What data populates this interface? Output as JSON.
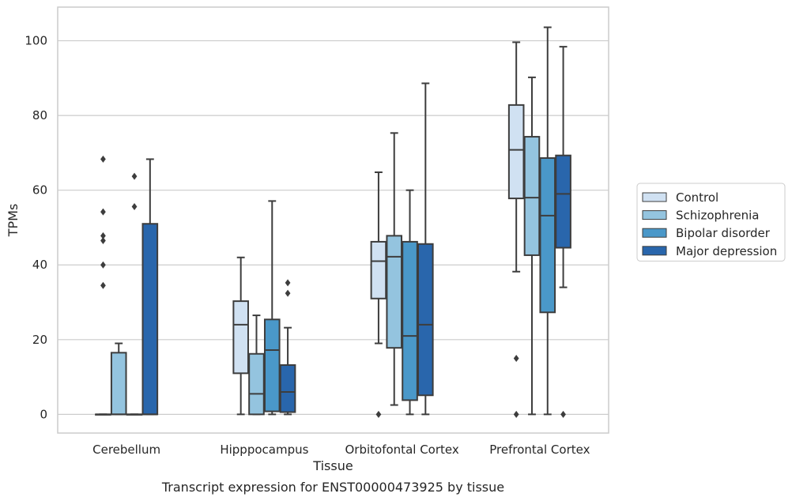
{
  "chart_data": {
    "type": "box",
    "caption": "Transcript expression for ENST00000473925 by tissue",
    "xlabel": "Tissue",
    "ylabel": "TPMs",
    "ylim": [
      -5,
      109
    ],
    "yticks": [
      0,
      20,
      40,
      60,
      80,
      100
    ],
    "grid": "horizontal",
    "legend_position": "outside right",
    "categories": [
      "Cerebellum",
      "Hipppocampus",
      "Orbitofontal Cortex",
      "Prefrontal Cortex"
    ],
    "series": [
      {
        "name": "Control",
        "color": "#d0e1f2",
        "boxes": [
          {
            "whisker_low": 0,
            "q1": 0,
            "median": 0,
            "q3": 0,
            "whisker_high": 0,
            "outliers": [
              34.5,
              40,
              46.5,
              47.8,
              54.2,
              68.3
            ]
          },
          {
            "whisker_low": 0,
            "q1": 11,
            "median": 24,
            "q3": 30.3,
            "whisker_high": 42,
            "outliers": []
          },
          {
            "whisker_low": 19,
            "q1": 31,
            "median": 41,
            "q3": 46.2,
            "whisker_high": 64.8,
            "outliers": [
              0
            ]
          },
          {
            "whisker_low": 38.2,
            "q1": 57.8,
            "median": 70.8,
            "q3": 82.8,
            "whisker_high": 99.6,
            "outliers": [
              0,
              15
            ]
          }
        ]
      },
      {
        "name": "Schizophrenia",
        "color": "#94c4df",
        "boxes": [
          {
            "whisker_low": 0,
            "q1": 0,
            "median": 0,
            "q3": 16.5,
            "whisker_high": 19,
            "outliers": []
          },
          {
            "whisker_low": 0,
            "q1": 0,
            "median": 5.5,
            "q3": 16.2,
            "whisker_high": 26.5,
            "outliers": []
          },
          {
            "whisker_low": 2.5,
            "q1": 17.8,
            "median": 42.2,
            "q3": 47.8,
            "whisker_high": 75.3,
            "outliers": []
          },
          {
            "whisker_low": 0,
            "q1": 42.6,
            "median": 58,
            "q3": 74.3,
            "whisker_high": 90.2,
            "outliers": []
          }
        ]
      },
      {
        "name": "Bipolar disorder",
        "color": "#4a98c9",
        "boxes": [
          {
            "whisker_low": 0,
            "q1": 0,
            "median": 0,
            "q3": 0,
            "whisker_high": 0,
            "outliers": [
              55.6,
              63.7
            ]
          },
          {
            "whisker_low": 0,
            "q1": 0.8,
            "median": 17.2,
            "q3": 25.4,
            "whisker_high": 57.1,
            "outliers": []
          },
          {
            "whisker_low": 0,
            "q1": 3.8,
            "median": 21,
            "q3": 46.2,
            "whisker_high": 60,
            "outliers": []
          },
          {
            "whisker_low": 0,
            "q1": 27.3,
            "median": 53.2,
            "q3": 68.6,
            "whisker_high": 103.6,
            "outliers": []
          }
        ]
      },
      {
        "name": "Major depression",
        "color": "#2966ac",
        "boxes": [
          {
            "whisker_low": 0,
            "q1": 0,
            "median": 0,
            "q3": 51,
            "whisker_high": 68.3,
            "outliers": []
          },
          {
            "whisker_low": 0,
            "q1": 0.6,
            "median": 6,
            "q3": 13.2,
            "whisker_high": 23.2,
            "outliers": [
              32.4,
              35.2
            ]
          },
          {
            "whisker_low": 0,
            "q1": 5.1,
            "median": 24,
            "q3": 45.6,
            "whisker_high": 88.6,
            "outliers": []
          },
          {
            "whisker_low": 34,
            "q1": 44.6,
            "median": 59,
            "q3": 69.3,
            "whisker_high": 98.4,
            "outliers": [
              0
            ]
          }
        ]
      }
    ]
  }
}
